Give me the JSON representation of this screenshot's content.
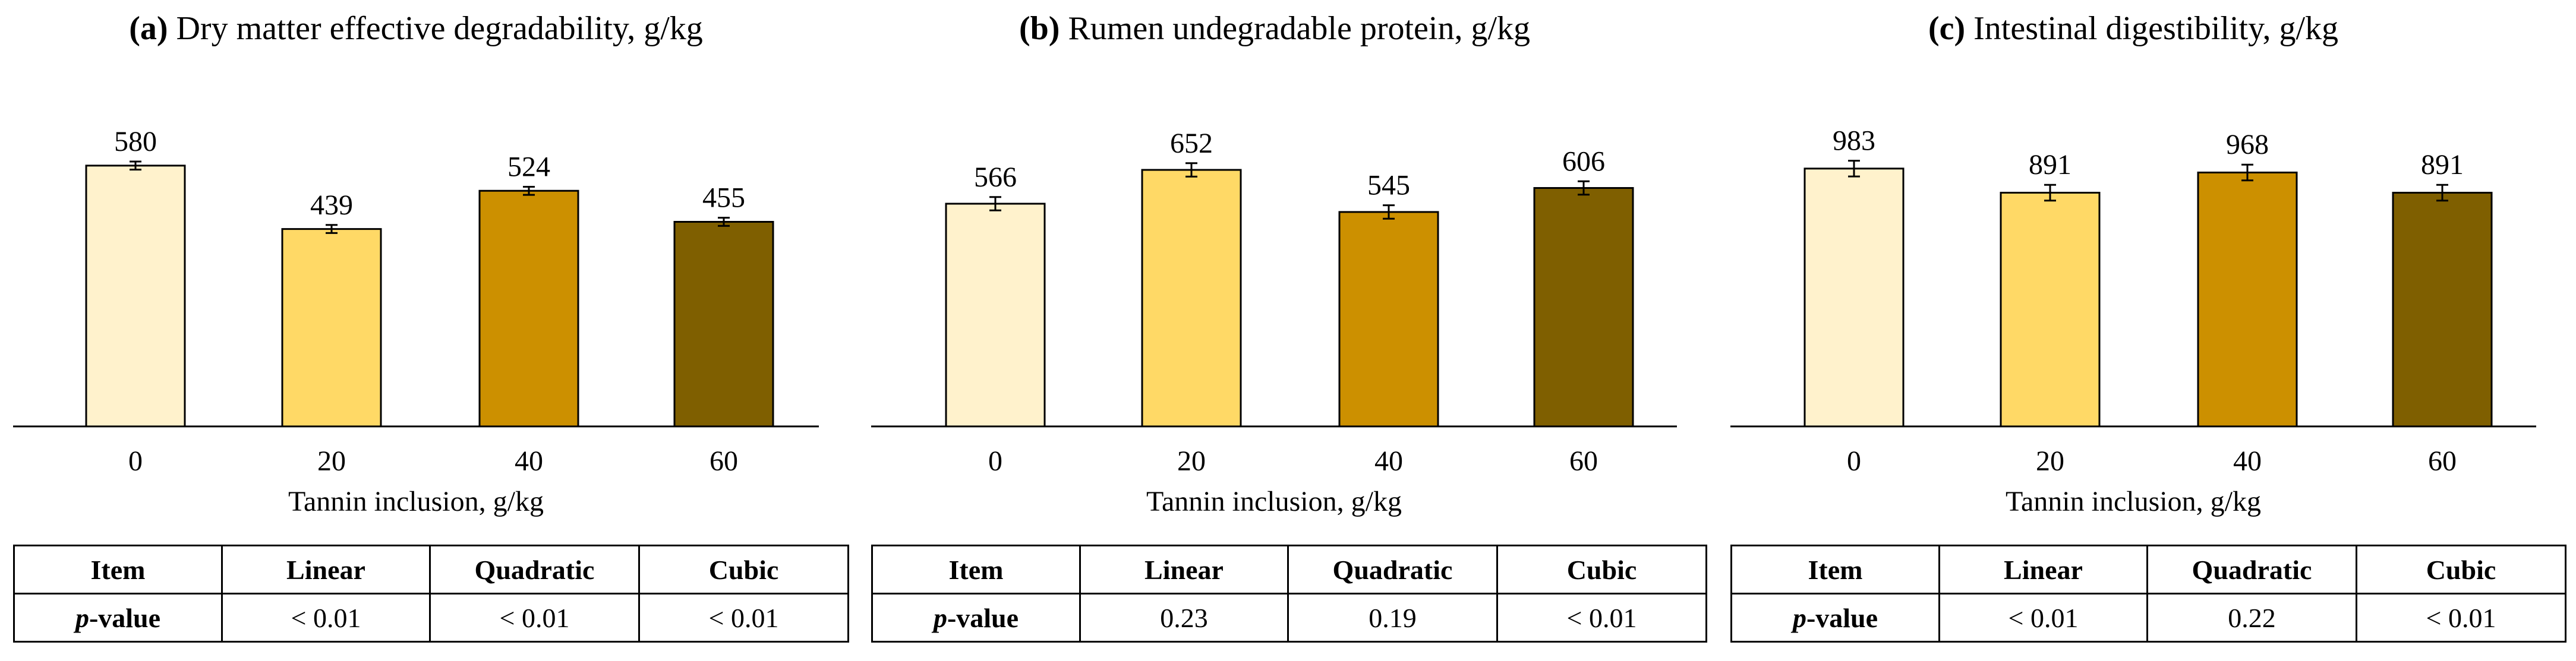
{
  "chart_data": [
    {
      "type": "bar",
      "title_prefix": "(a)",
      "title_text": "Dry matter effective degradability, g/kg",
      "categories": [
        "0",
        "20",
        "40",
        "60"
      ],
      "values": [
        580,
        439,
        524,
        455
      ],
      "value_labels": [
        "580",
        "439",
        "524",
        "455"
      ],
      "errors": [
        9,
        9,
        9,
        9
      ],
      "colors": [
        "#FFF2CC",
        "#FFD966",
        "#CC9000",
        "#7F5F00"
      ],
      "xlabel": "Tannin inclusion, g/kg",
      "ylabel": "",
      "ylim": [
        0,
        700
      ],
      "table": {
        "headers": [
          "Item",
          "Linear",
          "Quadratic",
          "Cubic"
        ],
        "row_label": "p-value",
        "row_label_italic": "p",
        "row_label_rest": "-value",
        "values": [
          "< 0.01",
          "< 0.01",
          "< 0.01"
        ]
      }
    },
    {
      "type": "bar",
      "title_prefix": "(b)",
      "title_text": "Rumen undegradable protein, g/kg",
      "categories": [
        "0",
        "20",
        "40",
        "60"
      ],
      "values": [
        566,
        652,
        545,
        606
      ],
      "value_labels": [
        "566",
        "652",
        "545",
        "606"
      ],
      "errors": [
        17,
        17,
        17,
        17
      ],
      "colors": [
        "#FFF2CC",
        "#FFD966",
        "#CC9000",
        "#7F5F00"
      ],
      "xlabel": "Tannin inclusion, g/kg",
      "ylabel": "",
      "ylim": [
        0,
        800
      ],
      "table": {
        "headers": [
          "Item",
          "Linear",
          "Quadratic",
          "Cubic"
        ],
        "row_label": "p-value",
        "row_label_italic": "p",
        "row_label_rest": "-value",
        "values": [
          "0.23",
          "0.19",
          "< 0.01"
        ]
      }
    },
    {
      "type": "bar",
      "title_prefix": "(c)",
      "title_text": "Intestinal digestibility, g/kg",
      "categories": [
        "0",
        "20",
        "40",
        "60"
      ],
      "values": [
        983,
        891,
        968,
        891
      ],
      "value_labels": [
        "983",
        "891",
        "968",
        "891"
      ],
      "errors": [
        30,
        30,
        30,
        30
      ],
      "colors": [
        "#FFF2CC",
        "#FFD966",
        "#CC9000",
        "#7F5F00"
      ],
      "xlabel": "Tannin inclusion, g/kg",
      "ylabel": "",
      "ylim": [
        0,
        1200
      ],
      "table": {
        "headers": [
          "Item",
          "Linear",
          "Quadratic",
          "Cubic"
        ],
        "row_label": "p-value",
        "row_label_italic": "p",
        "row_label_rest": "-value",
        "values": [
          "< 0.01",
          "0.22",
          "< 0.01"
        ]
      }
    }
  ]
}
